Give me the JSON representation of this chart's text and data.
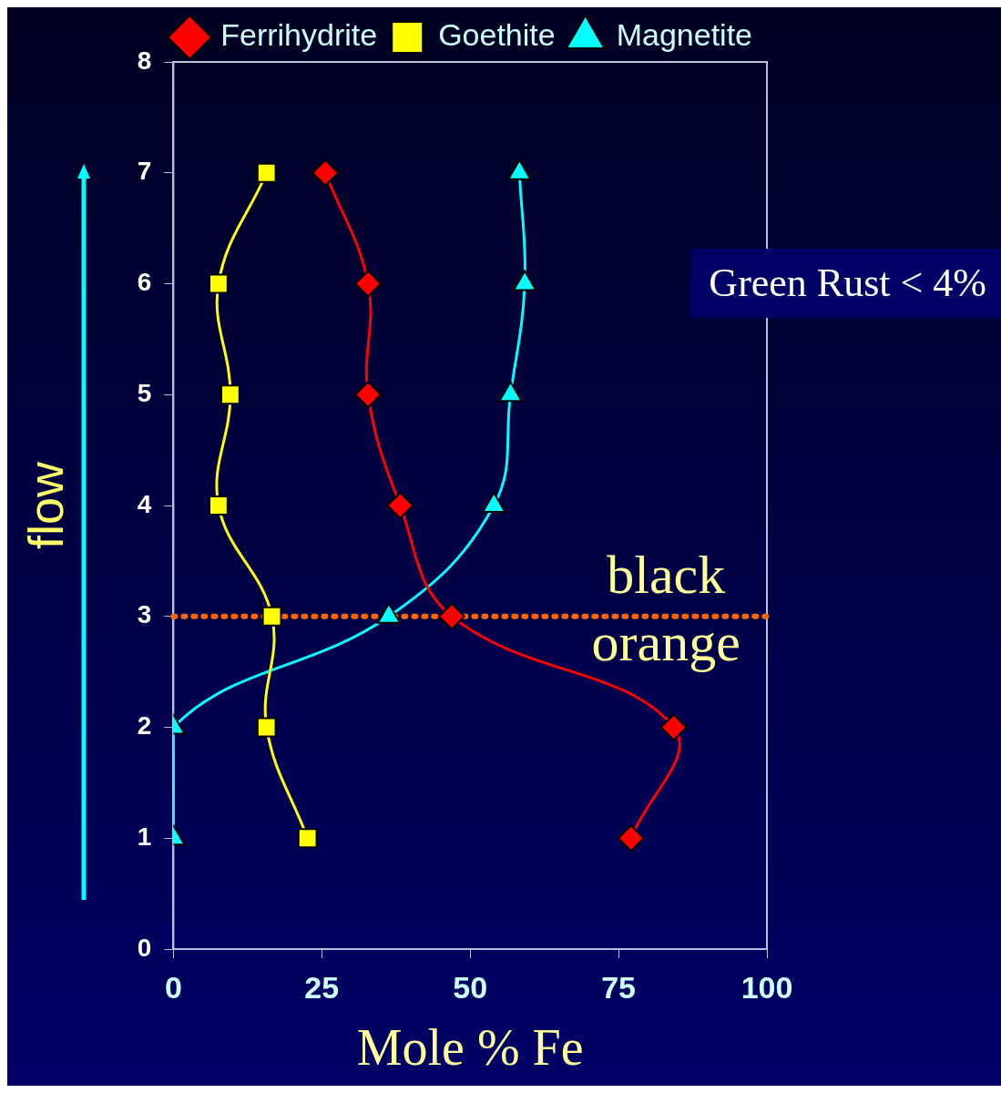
{
  "chart_data": {
    "type": "line",
    "xlabel": "Mole % Fe",
    "ylabel": "flow",
    "xlim": [
      0,
      100
    ],
    "xticks": [
      0,
      25,
      50,
      75,
      100
    ],
    "ylim": [
      0,
      8
    ],
    "yticks": [
      0,
      1,
      2,
      3,
      4,
      5,
      6,
      7,
      8
    ],
    "grid": false,
    "legend": "top right",
    "series": [
      {
        "name": "Ferrihydrite",
        "color": "#ff0000",
        "marker": "diamond",
        "x": [
          77.1,
          84.3,
          46.9,
          38.2,
          32.8,
          32.8,
          25.6
        ],
        "values": [
          1,
          2,
          3,
          4,
          5,
          6,
          7
        ]
      },
      {
        "name": "Goethite",
        "color": "#ffff00",
        "marker": "square",
        "x": [
          22.6,
          15.7,
          16.6,
          7.6,
          9.6,
          7.6,
          15.7
        ],
        "values": [
          1,
          2,
          3,
          4,
          5,
          6,
          7
        ]
      },
      {
        "name": "Magnetite",
        "color": "#00ffff",
        "marker": "triangle",
        "x": [
          0,
          0,
          36.3,
          54,
          56.8,
          59.2,
          58.3
        ],
        "values": [
          1,
          2,
          3,
          4,
          5,
          6,
          7
        ]
      }
    ],
    "ref_lines": [
      {
        "axis": "y",
        "value": 3,
        "color": "#ff6600",
        "line_style": "dotted"
      }
    ],
    "annotations": [
      "black",
      "orange",
      "Green Rust < 4%"
    ]
  }
}
